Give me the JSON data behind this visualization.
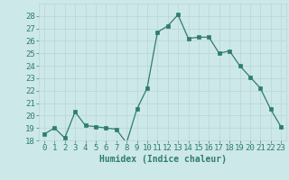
{
  "x": [
    0,
    1,
    2,
    3,
    4,
    5,
    6,
    7,
    8,
    9,
    10,
    11,
    12,
    13,
    14,
    15,
    16,
    17,
    18,
    19,
    20,
    21,
    22,
    23
  ],
  "y": [
    18.5,
    19,
    18.2,
    20.3,
    19.2,
    19.1,
    19,
    18.9,
    17.8,
    20.5,
    22.2,
    26.7,
    27.2,
    28.1,
    26.2,
    26.3,
    26.3,
    25.0,
    25.2,
    24.0,
    23.1,
    22.2,
    20.5,
    19.1
  ],
  "xlabel": "Humidex (Indice chaleur)",
  "ylim": [
    18,
    29
  ],
  "xlim": [
    -0.5,
    23.5
  ],
  "yticks": [
    18,
    19,
    20,
    21,
    22,
    23,
    24,
    25,
    26,
    27,
    28
  ],
  "xticks": [
    0,
    1,
    2,
    3,
    4,
    5,
    6,
    7,
    8,
    9,
    10,
    11,
    12,
    13,
    14,
    15,
    16,
    17,
    18,
    19,
    20,
    21,
    22,
    23
  ],
  "line_color": "#2e7d6e",
  "marker_color": "#2e7d6e",
  "bg_color": "#cde8e8",
  "grid_color": "#b8d4d4",
  "xlabel_fontsize": 7,
  "tick_fontsize": 6.5,
  "marker_size": 2.5
}
